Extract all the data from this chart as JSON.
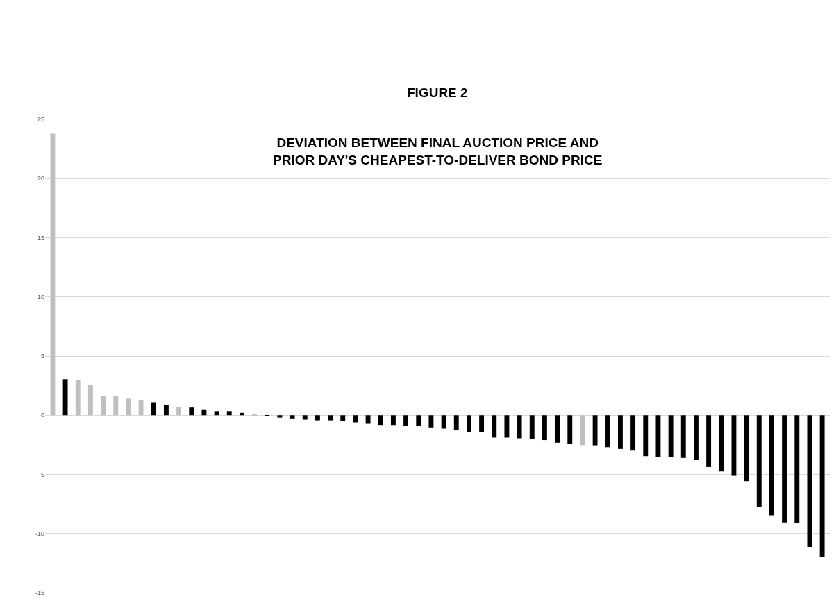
{
  "chart_data": {
    "type": "bar",
    "title": "FIGURE 2",
    "subtitle": "DEVIATION BETWEEN FINAL AUCTION PRICE AND\nPRIOR DAY'S CHEAPEST-TO-DELIVER BOND PRICE",
    "categories": [
      null,
      null,
      null,
      null,
      null,
      null,
      null,
      null,
      null,
      null,
      null,
      null,
      null,
      null,
      null,
      null,
      null,
      null,
      null,
      null,
      null,
      null,
      null,
      null,
      null,
      null,
      null,
      null,
      null,
      null,
      null,
      null,
      null,
      null,
      null,
      null,
      null,
      null,
      null,
      null,
      null,
      null,
      null,
      null,
      null,
      null,
      null,
      null,
      null,
      null,
      null,
      null,
      null,
      null,
      null,
      null,
      null,
      null,
      null,
      null,
      null,
      null
    ],
    "values": [
      23.8,
      3.05,
      2.98,
      2.6,
      1.6,
      1.6,
      1.4,
      1.3,
      1.1,
      0.9,
      0.7,
      0.65,
      0.5,
      0.35,
      0.35,
      0.2,
      0.1,
      -0.05,
      -0.2,
      -0.27,
      -0.37,
      -0.43,
      -0.43,
      -0.5,
      -0.6,
      -0.72,
      -0.82,
      -0.82,
      -0.9,
      -0.9,
      -1.03,
      -1.13,
      -1.26,
      -1.4,
      -1.4,
      -1.89,
      -1.89,
      -1.95,
      -2.02,
      -2.1,
      -2.32,
      -2.4,
      -2.52,
      -2.54,
      -2.7,
      -2.85,
      -2.93,
      -3.46,
      -3.54,
      -3.54,
      -3.61,
      -3.75,
      -4.38,
      -4.75,
      -5.12,
      -5.57,
      -7.79,
      -8.46,
      -9.06,
      -9.14,
      -11.13,
      -12.01
    ],
    "colors": [
      "#bfbfbf",
      "#000000",
      "#bfbfbf",
      "#bfbfbf",
      "#bfbfbf",
      "#bfbfbf",
      "#bfbfbf",
      "#bfbfbf",
      "#000000",
      "#000000",
      "#bfbfbf",
      "#000000",
      "#000000",
      "#000000",
      "#000000",
      "#000000",
      "#bfbfbf",
      "#000000",
      "#000000",
      "#000000",
      "#000000",
      "#000000",
      "#000000",
      "#000000",
      "#000000",
      "#000000",
      "#000000",
      "#000000",
      "#000000",
      "#000000",
      "#000000",
      "#000000",
      "#000000",
      "#000000",
      "#000000",
      "#000000",
      "#000000",
      "#000000",
      "#000000",
      "#000000",
      "#000000",
      "#000000",
      "#bfbfbf",
      "#000000",
      "#000000",
      "#000000",
      "#000000",
      "#000000",
      "#000000",
      "#000000",
      "#000000",
      "#000000",
      "#000000",
      "#000000",
      "#000000",
      "#000000",
      "#000000",
      "#000000",
      "#000000",
      "#000000",
      "#000000",
      "#000000"
    ],
    "ylim": [
      -15,
      25
    ],
    "yticks": [
      -15,
      -10,
      -5,
      0,
      5,
      10,
      15,
      20,
      25
    ],
    "grid": "y",
    "tick_labels": "y"
  }
}
